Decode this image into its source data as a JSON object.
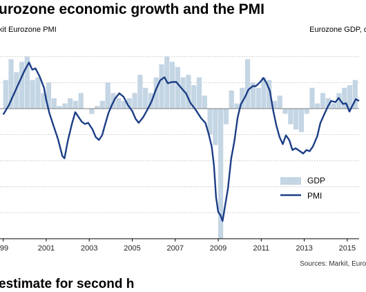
{
  "chart_data": {
    "type": "bar+line",
    "title": "urozone economic growth and the PMI",
    "left_axis_label": "kit Eurozone PMI",
    "right_axis_label": "Eurozone GDP, q/",
    "source": "Sources: Markit, Eurost",
    "footer_fragment": "estimate for second h",
    "x_ticks": [
      "99",
      "2001",
      "2003",
      "2005",
      "2007",
      "2009",
      "2011",
      "2013",
      "2015"
    ],
    "xlim": [
      1998.85,
      2015.55
    ],
    "gdp_ylim": [
      -2.5,
      1.25
    ],
    "pmi_ylim": [
      30,
      63
    ],
    "legend": [
      {
        "label": "GDP",
        "type": "bar",
        "color": "#c4d5e4"
      },
      {
        "label": "PMI",
        "type": "line",
        "color": "#1b3d85"
      }
    ],
    "series": [
      {
        "name": "GDP",
        "kind": "bar",
        "x_start": 1999.0,
        "step": 0.25,
        "values": [
          0.55,
          0.95,
          0.7,
          0.9,
          1.0,
          0.55,
          0.6,
          0.3,
          0.5,
          0.2,
          0.05,
          0.1,
          0.2,
          0.15,
          0.3,
          0.0,
          -0.1,
          0.05,
          0.15,
          0.5,
          0.3,
          0.2,
          0.15,
          0.2,
          0.3,
          0.65,
          0.4,
          0.3,
          0.6,
          0.85,
          1.0,
          0.9,
          0.8,
          0.6,
          0.65,
          0.45,
          0.6,
          0.25,
          -0.5,
          -0.7,
          -2.5,
          -0.3,
          0.35,
          0.1,
          0.4,
          0.95,
          0.5,
          0.4,
          0.6,
          0.55,
          0.15,
          0.25,
          -0.1,
          -0.3,
          -0.4,
          -0.45,
          -0.1,
          0.4,
          0.1,
          0.3,
          0.2,
          0.1,
          0.3,
          0.4,
          0.45,
          0.55
        ]
      },
      {
        "name": "PMI",
        "kind": "line",
        "points": [
          [
            1999.0,
            51
          ],
          [
            1999.25,
            52.5
          ],
          [
            1999.5,
            54.5
          ],
          [
            1999.75,
            56.5
          ],
          [
            2000.0,
            58.5
          ],
          [
            2000.2,
            59.8
          ],
          [
            2000.35,
            58.6
          ],
          [
            2000.5,
            58.8
          ],
          [
            2000.7,
            57.4
          ],
          [
            2000.9,
            55.5
          ],
          [
            2001.0,
            53.5
          ],
          [
            2001.15,
            51.2
          ],
          [
            2001.35,
            49
          ],
          [
            2001.55,
            46.8
          ],
          [
            2001.75,
            44
          ],
          [
            2001.85,
            43.6
          ],
          [
            2002.0,
            46.5
          ],
          [
            2002.2,
            49.5
          ],
          [
            2002.35,
            51.4
          ],
          [
            2002.5,
            50.6
          ],
          [
            2002.65,
            49.8
          ],
          [
            2002.8,
            49.4
          ],
          [
            2002.95,
            49.6
          ],
          [
            2003.15,
            48.5
          ],
          [
            2003.3,
            47.2
          ],
          [
            2003.45,
            46.7
          ],
          [
            2003.6,
            47.5
          ],
          [
            2003.75,
            49.5
          ],
          [
            2003.9,
            51.3
          ],
          [
            2004.05,
            52.6
          ],
          [
            2004.2,
            53.7
          ],
          [
            2004.4,
            54.6
          ],
          [
            2004.6,
            54
          ],
          [
            2004.8,
            52.6
          ],
          [
            2005.0,
            51.6
          ],
          [
            2005.15,
            50.3
          ],
          [
            2005.3,
            49.6
          ],
          [
            2005.5,
            50.5
          ],
          [
            2005.7,
            51.8
          ],
          [
            2005.9,
            53.2
          ],
          [
            2006.1,
            55.2
          ],
          [
            2006.3,
            56.8
          ],
          [
            2006.5,
            57.3
          ],
          [
            2006.65,
            56.3
          ],
          [
            2006.85,
            56.5
          ],
          [
            2007.05,
            56.5
          ],
          [
            2007.3,
            55.4
          ],
          [
            2007.5,
            54.6
          ],
          [
            2007.7,
            53
          ],
          [
            2007.95,
            51.8
          ],
          [
            2008.2,
            50.4
          ],
          [
            2008.4,
            49.6
          ],
          [
            2008.55,
            47.8
          ],
          [
            2008.7,
            45.5
          ],
          [
            2008.8,
            42.4
          ],
          [
            2008.9,
            37
          ],
          [
            2009.0,
            34.5
          ],
          [
            2009.1,
            34
          ],
          [
            2009.2,
            33
          ],
          [
            2009.3,
            35.2
          ],
          [
            2009.45,
            38.5
          ],
          [
            2009.6,
            43.5
          ],
          [
            2009.75,
            46.5
          ],
          [
            2009.9,
            50.5
          ],
          [
            2010.05,
            52.7
          ],
          [
            2010.25,
            54
          ],
          [
            2010.4,
            55.2
          ],
          [
            2010.6,
            55.8
          ],
          [
            2010.75,
            55.8
          ],
          [
            2010.95,
            56.5
          ],
          [
            2011.1,
            57.2
          ],
          [
            2011.25,
            56.3
          ],
          [
            2011.4,
            55
          ],
          [
            2011.55,
            51.8
          ],
          [
            2011.7,
            49.2
          ],
          [
            2011.85,
            47.2
          ],
          [
            2012.0,
            46
          ],
          [
            2012.15,
            47.5
          ],
          [
            2012.3,
            46.7
          ],
          [
            2012.45,
            45
          ],
          [
            2012.6,
            45.3
          ],
          [
            2012.8,
            44.8
          ],
          [
            2012.95,
            44.4
          ],
          [
            2013.1,
            45
          ],
          [
            2013.25,
            44.8
          ],
          [
            2013.4,
            45.6
          ],
          [
            2013.6,
            47.3
          ],
          [
            2013.75,
            49.6
          ],
          [
            2013.95,
            51.2
          ],
          [
            2014.1,
            52.4
          ],
          [
            2014.25,
            53.3
          ],
          [
            2014.45,
            53.1
          ],
          [
            2014.6,
            53.8
          ],
          [
            2014.8,
            52.8
          ],
          [
            2014.95,
            52.9
          ],
          [
            2015.1,
            51.5
          ],
          [
            2015.25,
            52.6
          ],
          [
            2015.4,
            53.6
          ],
          [
            2015.55,
            53.3
          ]
        ]
      }
    ]
  }
}
